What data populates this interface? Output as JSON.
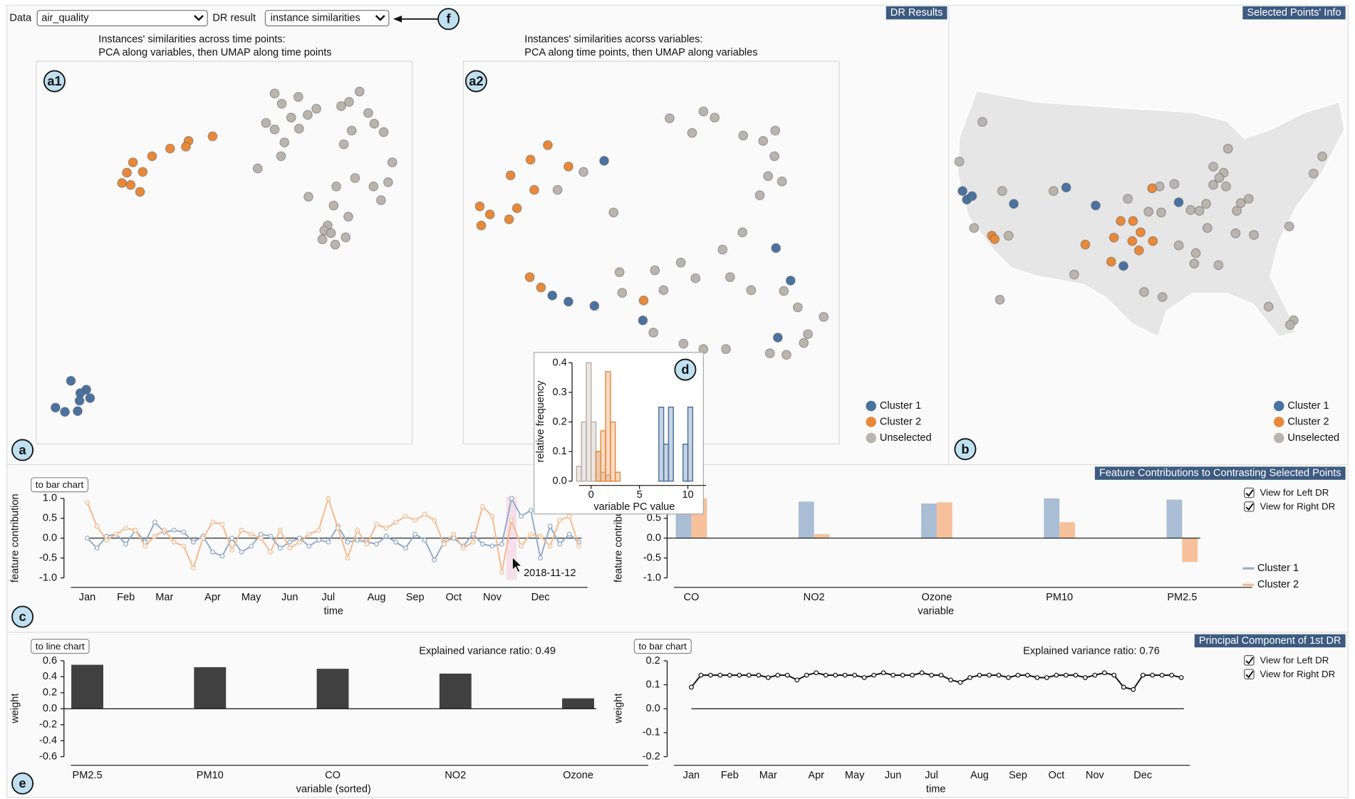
{
  "controls": {
    "data_label": "Data",
    "data_value": "air_quality",
    "dr_label": "DR result",
    "dr_value": "instance similarities"
  },
  "panel_titles": [
    "DR Results",
    "Selected Points' Info",
    "Feature Contributions to Contrasting Selected Points",
    "Principal Component of 1st DR"
  ],
  "panel_markers": [
    "a1",
    "a2",
    "a",
    "b",
    "c",
    "d",
    "e",
    "f"
  ],
  "chart_data": [
    {
      "type": "scatter",
      "title": "Instances' similarities across time points:",
      "subtitle": "PCA along variables, then UMAP along time points",
      "xlim": [
        0,
        100
      ],
      "ylim": [
        0,
        100
      ],
      "series": [
        {
          "color": "#4a72a0",
          "x": [
            9.2,
            13.3,
            11.7,
            14.3,
            11.5,
            5.1,
            7.6,
            11.0
          ],
          "y": [
            16.5,
            14.2,
            13.3,
            12.0,
            11.3,
            9.5,
            8.4,
            8.6
          ]
        },
        {
          "color": "#e8893a",
          "x": [
            46.9,
            40.5,
            39.8,
            35.6,
            30.8,
            25.7,
            28.3,
            24.1,
            22.8,
            25.1,
            27.6
          ],
          "y": [
            80.4,
            79.2,
            77.7,
            77.2,
            75.2,
            73.6,
            71.1,
            70.9,
            68.2,
            67.7,
            65.9
          ]
        },
        {
          "color": "#b9b4ae",
          "x": [
            63.4,
            69.7,
            86.0,
            65.3,
            83.2,
            81.1,
            74.5,
            88.3,
            67.8,
            61.1,
            72.2,
            89.9,
            63.4,
            69.9,
            83.9,
            92.4,
            66.0,
            81.8,
            65.1,
            94.7,
            58.9,
            84.8,
            93.6,
            89.7,
            79.8,
            72.4,
            91.7,
            79.1,
            83.0,
            77.5,
            76.6,
            78.4,
            82.3,
            76.1,
            79.5
          ],
          "y": [
            91.6,
            90.7,
            92.1,
            88.9,
            89.4,
            88.3,
            87.6,
            86.5,
            85.3,
            83.9,
            86.0,
            83.7,
            82.2,
            82.4,
            81.9,
            81.5,
            78.8,
            78.3,
            75.2,
            73.6,
            72.0,
            69.5,
            68.4,
            67.3,
            67.3,
            64.6,
            63.7,
            62.3,
            59.4,
            57.1,
            55.8,
            55.1,
            54.0,
            53.5,
            52.1
          ]
        }
      ]
    },
    {
      "type": "scatter",
      "title": "Instances' similarities acorss variables:",
      "subtitle": "PCA along time points, then UMAP along variables",
      "xlim": [
        0,
        100
      ],
      "ylim": [
        0,
        100
      ],
      "legend": "lower right",
      "series": [
        {
          "name": "Cluster 1",
          "color": "#4a72a0",
          "x": [
            37.5,
            83.2,
            87.1,
            23.7,
            28.0,
            34.9,
            47.8,
            83.7
          ],
          "y": [
            74.0,
            51.2,
            42.7,
            38.8,
            37.2,
            36.1,
            32.3,
            27.8
          ]
        },
        {
          "name": "Cluster 2",
          "color": "#e8893a",
          "x": [
            22.5,
            17.9,
            28.0,
            12.6,
            18.9,
            14.3,
            4.4,
            7.1,
            12.2,
            4.8,
            17.7,
            20.7,
            48.0
          ],
          "y": [
            78.1,
            74.3,
            72.5,
            70.2,
            66.4,
            61.6,
            62.1,
            60.0,
            58.7,
            57.1,
            43.6,
            40.9,
            37.5
          ]
        },
        {
          "name": "Unselected",
          "color": "#b9b4ae",
          "x": [
            54.9,
            63.9,
            66.9,
            60.9,
            74.5,
            83.0,
            79.8,
            82.8,
            32.0,
            25.1,
            81.1,
            84.8,
            78.9,
            40.0,
            74.3,
            57.9,
            69.0,
            41.6,
            51.0,
            61.8,
            71.0,
            76.6,
            42.3,
            85.3,
            53.3,
            89.0,
            50.6,
            58.6,
            63.9,
            69.9,
            95.9,
            91.7,
            90.6,
            81.6,
            86.0
          ],
          "y": [
            85.1,
            86.9,
            85.3,
            81.3,
            80.6,
            81.9,
            79.2,
            75.2,
            71.1,
            66.4,
            70.0,
            68.6,
            65.0,
            60.5,
            55.3,
            47.4,
            50.8,
            44.9,
            45.4,
            43.3,
            43.6,
            40.2,
            39.5,
            40.0,
            40.2,
            35.7,
            29.1,
            26.2,
            24.8,
            24.8,
            33.2,
            28.7,
            26.4,
            23.7,
            23.3
          ]
        }
      ]
    },
    {
      "type": "scatter",
      "xlim": [
        0,
        100
      ],
      "ylim": [
        0,
        100
      ],
      "legend": "lower right",
      "series": [
        {
          "name": "Cluster 1",
          "color": "#4a72a0",
          "x": [
            3.0,
            4.1,
            5.4,
            15.9,
            29.1,
            36.5,
            57.4,
            43.5
          ],
          "y": [
            57.7,
            54.5,
            55.8,
            52.9,
            59.0,
            52.3,
            53.5,
            29.7
          ]
        },
        {
          "name": "Cluster 2",
          "color": "#e8893a",
          "x": [
            50.7,
            10.4,
            11.1,
            42.8,
            45.9,
            47.8,
            41.1,
            45.7,
            50.9,
            33.9,
            47.4,
            40.4
          ],
          "y": [
            58.7,
            41.0,
            39.7,
            46.5,
            46.5,
            42.3,
            40.3,
            39.0,
            39.0,
            37.7,
            35.5,
            31.3
          ]
        },
        {
          "name": "Unselected",
          "color": "#b9b4ae",
          "x": [
            8.0,
            2.2,
            13.0,
            25.9,
            5.9,
            14.6,
            66.1,
            68.7,
            69.8,
            66.1,
            67.6,
            69.3,
            56.3,
            52.6,
            44.6,
            64.3,
            60.4,
            62.6,
            72.0,
            73.0,
            75.0,
            53.0,
            49.8,
            85.2,
            76.3,
            64.6,
            57.4,
            61.7,
            61.3,
            67.4,
            31.1,
            48.7,
            53.3,
            12.4,
            80.0,
            86.3,
            85.4,
            93.5,
            91.3,
            71.7
          ],
          "y": [
            83.5,
            68.7,
            57.7,
            57.7,
            43.9,
            41.0,
            66.8,
            64.5,
            73.5,
            60.0,
            62.6,
            59.4,
            60.3,
            59.4,
            54.8,
            52.9,
            50.6,
            50.3,
            50.3,
            53.2,
            54.8,
            49.7,
            50.0,
            44.5,
            41.3,
            43.9,
            37.4,
            34.5,
            30.6,
            30.0,
            26.5,
            20.0,
            18.1,
            17.1,
            14.5,
            9.4,
            7.7,
            70.6,
            64.2,
            41.9
          ]
        }
      ]
    },
    {
      "type": "line",
      "y_label": "feature contribution",
      "x_label": "time",
      "button": "to bar chart",
      "annotation": "2018-11-12",
      "legend": "right",
      "categories": [
        "Jan",
        null,
        null,
        null,
        "Feb",
        null,
        null,
        null,
        "Mar",
        null,
        null,
        null,
        null,
        "Apr",
        null,
        null,
        null,
        "May",
        null,
        null,
        null,
        "Jun",
        null,
        null,
        null,
        "Jul",
        null,
        null,
        null,
        null,
        "Aug",
        null,
        null,
        null,
        "Sep",
        null,
        null,
        null,
        "Oct",
        null,
        null,
        null,
        "Nov",
        null,
        null,
        null,
        null,
        "Dec",
        null,
        null,
        null,
        null
      ],
      "ylim": [
        -1,
        1
      ],
      "yticks": [
        {
          "value": 1,
          "label": "1.0"
        },
        0.5,
        {
          "value": 0,
          "label": "0.0"
        },
        -0.5,
        {
          "value": -1,
          "label": "-1.0"
        }
      ],
      "series": [
        {
          "name": "Cluster 1",
          "color": "#8fa9c8",
          "values": [
            0,
            -0.25,
            0.05,
            0.1,
            -0.15,
            0.2,
            -0.1,
            0.4,
            0.15,
            0.2,
            0.15,
            -0.1,
            0.05,
            -0.35,
            -0.45,
            0,
            -0.35,
            -0.2,
            0.1,
            0.05,
            -0.25,
            -0.1,
            0,
            -0.2,
            -0.05,
            -0.1,
            0.3,
            -0.1,
            -0.05,
            -0.1,
            -0.15,
            0.05,
            -0.1,
            -0.25,
            0.1,
            -0.05,
            -0.55,
            -0.1,
            0,
            -0.2,
            0.1,
            -0.15,
            -0.2,
            -0.15,
            1.0,
            0.55,
            0.7,
            -0.5,
            0.3,
            -0.15,
            0.1,
            -0.1
          ]
        },
        {
          "name": "Cluster 2",
          "color": "#f5b88a",
          "values": [
            0.9,
            0.3,
            -0.05,
            0.1,
            0.25,
            0.2,
            -0.2,
            0.05,
            0.2,
            -0.1,
            -0.2,
            -0.75,
            0,
            0.4,
            0.35,
            -0.3,
            0.2,
            0.1,
            0,
            -0.35,
            0.2,
            -0.25,
            -0.1,
            0.1,
            0.2,
            1.0,
            0.25,
            -0.5,
            0.2,
            -0.15,
            0.35,
            0.25,
            0.4,
            0.55,
            0.45,
            0.6,
            0.45,
            -0.15,
            0.1,
            -0.25,
            -0.1,
            0.8,
            0.55,
            -0.85,
            0.45,
            -0.2,
            0.1,
            0.05,
            -0.2,
            0.45,
            0.55,
            -0.2
          ]
        }
      ]
    },
    {
      "type": "histogram",
      "y_label": "relative frequency",
      "x_label": "variable PC value",
      "xlim": [
        -2,
        11
      ],
      "xticks": [
        0,
        5,
        10
      ],
      "ylim": [
        0,
        0.4
      ],
      "yticks": [
        {
          "value": 0,
          "label": "0.0"
        },
        0.1,
        0.2,
        0.3,
        0.4
      ],
      "bins": [
        -1.5,
        -1,
        -0.5,
        0,
        0.5,
        1,
        1.5,
        2,
        2.5,
        3,
        3.5,
        4,
        4.5,
        5,
        5.5,
        6,
        6.5,
        7,
        7.5,
        8,
        8.5,
        9,
        9.5,
        10,
        10.5,
        11
      ],
      "series": [
        {
          "color": "#b9b0a8",
          "values": [
            0.05,
            0.2,
            0.4,
            0.2,
            0.1,
            0.03,
            0.02,
            0,
            0,
            0,
            0,
            0,
            0,
            0,
            0,
            0,
            0,
            0,
            0,
            0,
            0,
            0,
            0,
            0,
            0
          ]
        },
        {
          "color": "#e8893a",
          "values": [
            0,
            0,
            0,
            0,
            0.1,
            0.17,
            0.37,
            0.2,
            0.03,
            0,
            0,
            0,
            0,
            0,
            0,
            0,
            0,
            0,
            0,
            0,
            0,
            0,
            0,
            0,
            0
          ]
        },
        {
          "color": "#4a72a0",
          "values": [
            0,
            0,
            0,
            0,
            0,
            0,
            0,
            0,
            0,
            0,
            0,
            0,
            0,
            0,
            0,
            0,
            0,
            0.25,
            0.125,
            0.25,
            0,
            0,
            0.125,
            0.25,
            0
          ]
        }
      ]
    },
    {
      "type": "bar",
      "y_label": "feature contribution",
      "x_label": "variable",
      "toggles": [
        "View for Left DR",
        "View for Right DR"
      ],
      "categories": [
        "CO",
        "NO2",
        "Ozone",
        "PM10",
        "PM2.5"
      ],
      "ylim": [
        -1,
        1
      ],
      "yticks": [
        {
          "value": 1,
          "label": "1.0"
        },
        0.5,
        {
          "value": 0,
          "label": "0.0"
        },
        -0.5,
        {
          "value": -1,
          "label": "-1.0"
        }
      ],
      "series": [
        {
          "color": "#a9bdd4",
          "values": [
            0.7,
            0.92,
            0.87,
            1.0,
            0.97
          ]
        },
        {
          "color": "#f5c09a",
          "values": [
            1.0,
            0.1,
            0.9,
            0.4,
            -0.6
          ]
        }
      ]
    },
    {
      "type": "bar",
      "y_label": "weight",
      "x_label": "variable (sorted)",
      "button": "to line chart",
      "annotation": "Explained variance ratio: 0.49",
      "categories": [
        "PM2.5",
        "PM10",
        "CO",
        "NO2",
        "Ozone"
      ],
      "values": [
        0.55,
        0.52,
        0.5,
        0.44,
        0.13
      ],
      "color": "#404040",
      "ylim": [
        -0.6,
        0.6
      ],
      "yticks": [
        0.6,
        0.4,
        0.2,
        {
          "value": 0,
          "label": "0.0"
        },
        -0.2,
        -0.4,
        -0.6
      ]
    },
    {
      "type": "line",
      "y_label": "weight",
      "x_label": "time",
      "button": "to bar chart",
      "annotation": "Explained variance ratio: 0.76",
      "toggles": [
        "View for Left DR",
        "View for Right DR"
      ],
      "categories": [
        "Jan",
        null,
        null,
        null,
        "Feb",
        null,
        null,
        null,
        "Mar",
        null,
        null,
        null,
        null,
        "Apr",
        null,
        null,
        null,
        "May",
        null,
        null,
        null,
        "Jun",
        null,
        null,
        null,
        "Jul",
        null,
        null,
        null,
        null,
        "Aug",
        null,
        null,
        null,
        "Sep",
        null,
        null,
        null,
        "Oct",
        null,
        null,
        null,
        "Nov",
        null,
        null,
        null,
        null,
        "Dec",
        null,
        null,
        null,
        null
      ],
      "ylim": [
        -0.2,
        0.2
      ],
      "yticks": [
        0.2,
        0.1,
        {
          "value": 0,
          "label": "0.0"
        },
        -0.1,
        -0.2
      ],
      "series": [
        {
          "color": "#111111",
          "values": [
            0.09,
            0.14,
            0.14,
            0.14,
            0.14,
            0.14,
            0.14,
            0.14,
            0.13,
            0.14,
            0.14,
            0.12,
            0.14,
            0.15,
            0.14,
            0.14,
            0.14,
            0.14,
            0.13,
            0.14,
            0.15,
            0.14,
            0.14,
            0.14,
            0.15,
            0.14,
            0.14,
            0.12,
            0.11,
            0.13,
            0.14,
            0.14,
            0.14,
            0.13,
            0.14,
            0.14,
            0.13,
            0.13,
            0.14,
            0.14,
            0.14,
            0.13,
            0.14,
            0.15,
            0.14,
            0.09,
            0.08,
            0.14,
            0.14,
            0.14,
            0.14,
            0.13
          ]
        }
      ]
    }
  ]
}
